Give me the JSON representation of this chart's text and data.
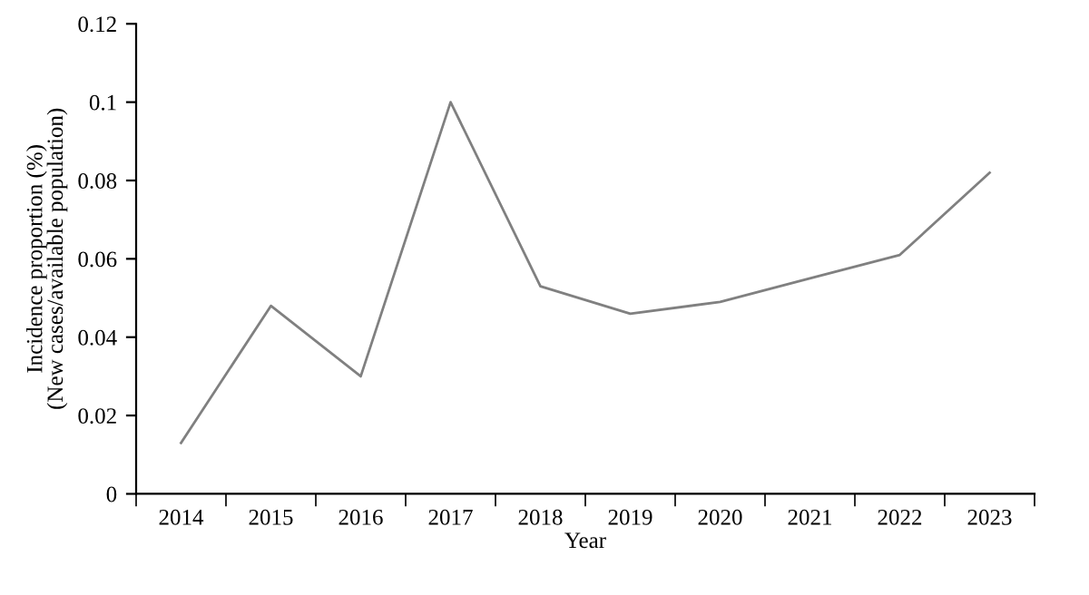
{
  "chart_data": {
    "type": "line",
    "xlabel": "Year",
    "ylabel": "Incidence proportion (%)\n(New cases/available population)",
    "categories": [
      "2014",
      "2015",
      "2016",
      "2017",
      "2018",
      "2019",
      "2020",
      "2021",
      "2022",
      "2023"
    ],
    "series": [
      {
        "color": "#808080",
        "values": [
          0.013,
          0.048,
          0.03,
          0.1,
          0.053,
          0.046,
          0.049,
          0.055,
          0.061,
          0.082
        ]
      }
    ],
    "ylim": [
      0,
      0.12
    ],
    "yticks": [
      {
        "value": 0,
        "label": "0"
      },
      {
        "value": 0.02,
        "label": "0.02"
      },
      {
        "value": 0.04,
        "label": "0.04"
      },
      {
        "value": 0.06,
        "label": "0.06"
      },
      {
        "value": 0.08,
        "label": "0.08"
      },
      {
        "value": 0.1,
        "label": "0.1"
      },
      {
        "value": 0.12,
        "label": "0.12"
      }
    ],
    "grid": false,
    "legend": false,
    "marker": "none",
    "line_style": "solid"
  }
}
